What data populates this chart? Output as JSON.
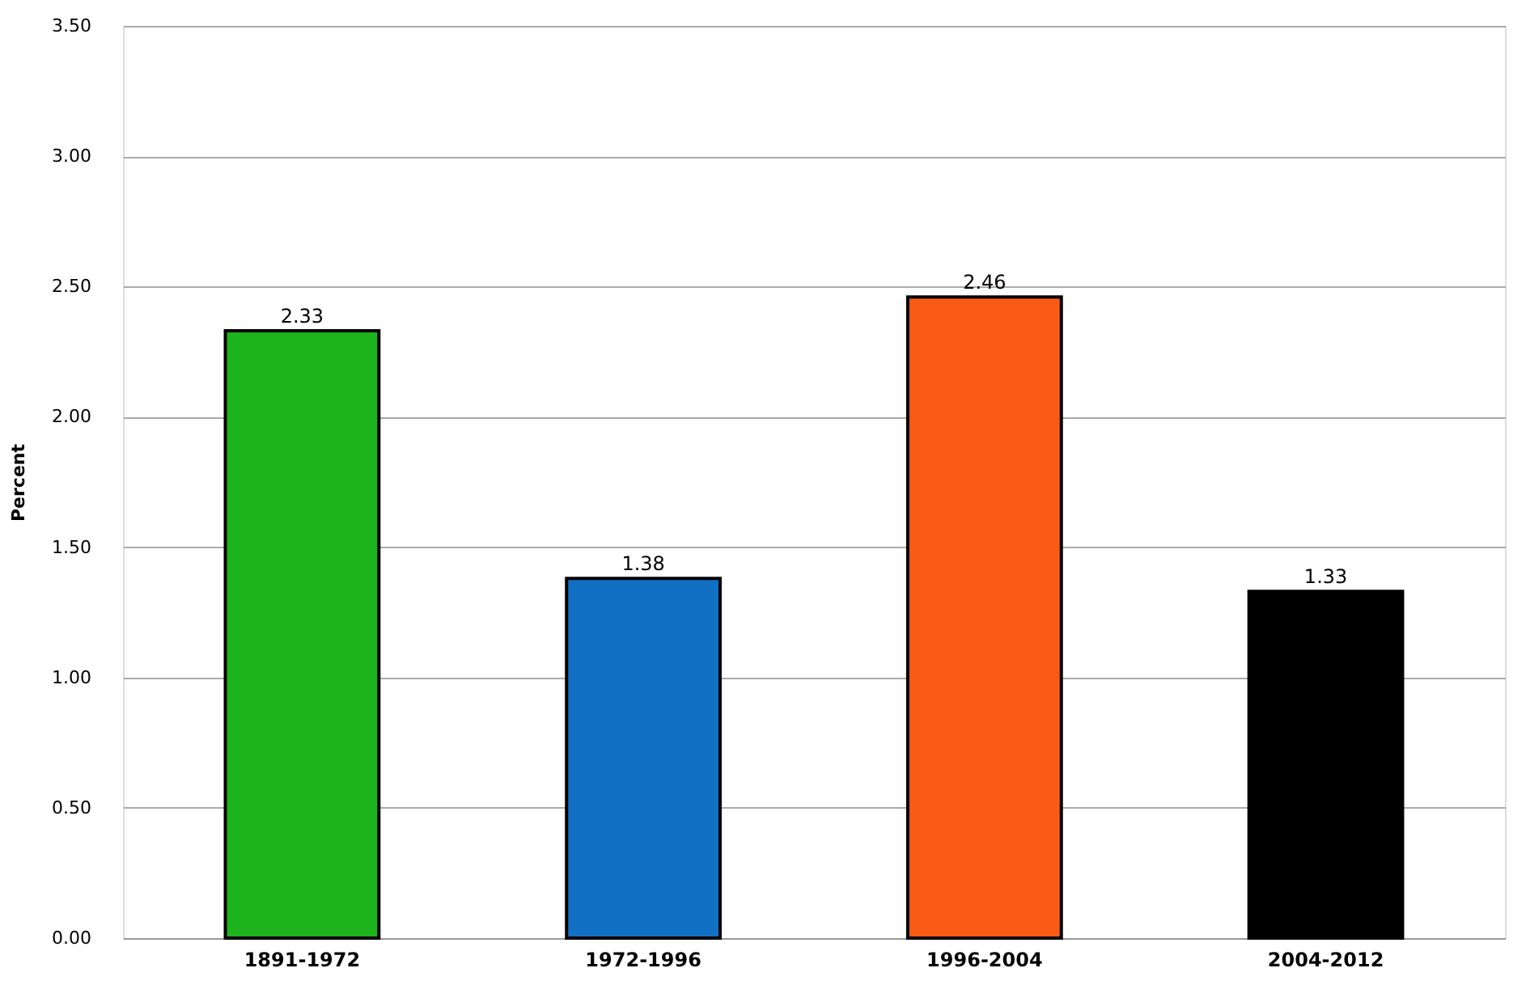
{
  "chart_data": {
    "type": "bar",
    "ylabel": "Percent",
    "categories": [
      "1891-1972",
      "1972-1996",
      "1996-2004",
      "2004-2012"
    ],
    "values": [
      2.33,
      1.38,
      2.46,
      1.33
    ],
    "colors": [
      "#1db31d",
      "#1270c4",
      "#f95b14",
      "#000000"
    ],
    "ylim": [
      0,
      3.5
    ],
    "yticks": [
      {
        "value": 0,
        "label": "0.00"
      },
      {
        "value": 0.5,
        "label": "0.50"
      },
      {
        "value": 1,
        "label": "1.00"
      },
      {
        "value": 1.5,
        "label": "1.50"
      },
      {
        "value": 2,
        "label": "2.00"
      },
      {
        "value": 2.5,
        "label": "2.50"
      },
      {
        "value": 3,
        "label": "3.00"
      },
      {
        "value": 3.5,
        "label": "3.50"
      }
    ],
    "grid": "y",
    "data_labels": true
  }
}
